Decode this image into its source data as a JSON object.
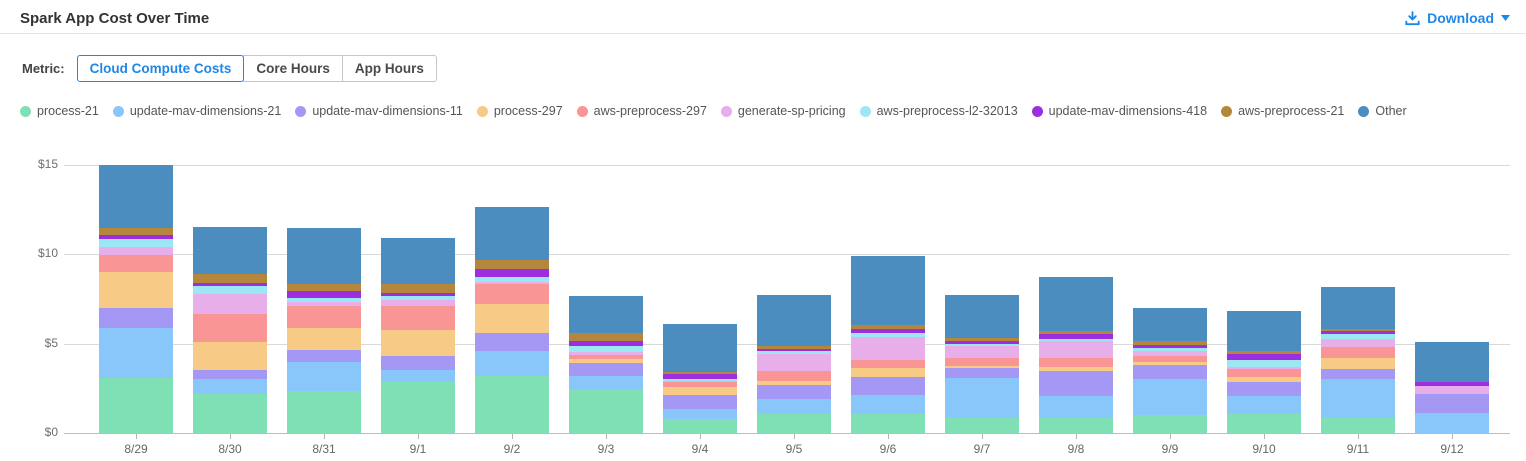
{
  "header": {
    "title": "Spark App Cost Over Time",
    "download_label": "Download"
  },
  "metric": {
    "label": "Metric:",
    "options": [
      {
        "label": "Cloud Compute Costs",
        "selected": true
      },
      {
        "label": "Core Hours",
        "selected": false
      },
      {
        "label": "App Hours",
        "selected": false
      }
    ]
  },
  "colors": {
    "accent_blue": "#1F87E8",
    "axis_line": "#bdbdbd",
    "gridline": "#d8d8d8",
    "axis_text": "#6e6e6e"
  },
  "chart_data": {
    "type": "bar",
    "stacked": true,
    "legend_position": "top",
    "grid": true,
    "ylim": [
      0,
      15.8
    ],
    "y_tick_values": [
      0,
      5,
      10,
      15
    ],
    "y_tick_labels": [
      "$0",
      "$5",
      "$10",
      "$15"
    ],
    "categories": [
      "8/29",
      "8/30",
      "8/31",
      "9/1",
      "9/2",
      "9/3",
      "9/4",
      "9/5",
      "9/6",
      "9/7",
      "9/8",
      "9/9",
      "9/10",
      "9/11",
      "9/12"
    ],
    "series": [
      {
        "name": "process-21",
        "color": "#7FE0B5",
        "values": [
          3.1,
          2.18,
          2.35,
          2.92,
          3.2,
          2.46,
          0.81,
          1.05,
          1.05,
          0.85,
          0.86,
          1.0,
          1.05,
          0.86,
          0.0
        ]
      },
      {
        "name": "update-mav-dimensions-21",
        "color": "#89C6FA",
        "values": [
          2.78,
          0.82,
          1.64,
          0.6,
          1.37,
          0.75,
          0.56,
          0.85,
          1.07,
          2.22,
          1.21,
          2.03,
          1.03,
          2.17,
          1.13
        ]
      },
      {
        "name": "update-mav-dimensions-11",
        "color": "#A598F4",
        "values": [
          1.13,
          0.54,
          0.64,
          0.81,
          1.03,
          0.72,
          0.76,
          0.79,
          1.01,
          0.56,
          1.41,
          0.79,
          0.79,
          0.56,
          1.03
        ]
      },
      {
        "name": "process-297",
        "color": "#F7CA86",
        "values": [
          1.98,
          1.54,
          1.24,
          1.43,
          1.6,
          0.23,
          0.47,
          0.23,
          0.53,
          0.11,
          0.24,
          0.15,
          0.26,
          0.6,
          0.0
        ]
      },
      {
        "name": "aws-preprocess-297",
        "color": "#FA9595",
        "values": [
          0.98,
          1.59,
          1.22,
          1.34,
          1.13,
          0.18,
          0.24,
          0.56,
          0.43,
          0.45,
          0.47,
          0.36,
          0.48,
          0.6,
          0.0
        ]
      },
      {
        "name": "generate-sp-pricing",
        "color": "#E7AEE9",
        "values": [
          0.46,
          1.13,
          0.26,
          0.35,
          0.15,
          0.17,
          0.08,
          0.94,
          1.26,
          0.66,
          0.94,
          0.24,
          0.1,
          0.49,
          0.47
        ]
      },
      {
        "name": "aws-preprocess-l2-32013",
        "color": "#9CE7F4",
        "values": [
          0.44,
          0.45,
          0.22,
          0.24,
          0.26,
          0.38,
          0.09,
          0.15,
          0.24,
          0.13,
          0.13,
          0.19,
          0.38,
          0.26,
          0.0
        ]
      },
      {
        "name": "update-mav-dimensions-418",
        "color": "#9C2EE0",
        "values": [
          0.23,
          0.15,
          0.38,
          0.14,
          0.44,
          0.24,
          0.28,
          0.15,
          0.23,
          0.15,
          0.28,
          0.19,
          0.32,
          0.15,
          0.24
        ]
      },
      {
        "name": "aws-preprocess-21",
        "color": "#B5873C",
        "values": [
          0.39,
          0.49,
          0.38,
          0.51,
          0.5,
          0.47,
          0.15,
          0.17,
          0.25,
          0.19,
          0.15,
          0.19,
          0.19,
          0.13,
          0.0
        ]
      },
      {
        "name": "Other",
        "color": "#4A8DBE",
        "values": [
          3.51,
          2.63,
          3.14,
          2.57,
          2.97,
          2.07,
          2.69,
          2.82,
          3.84,
          2.41,
          3.05,
          1.85,
          2.21,
          2.35,
          2.21
        ]
      }
    ]
  }
}
